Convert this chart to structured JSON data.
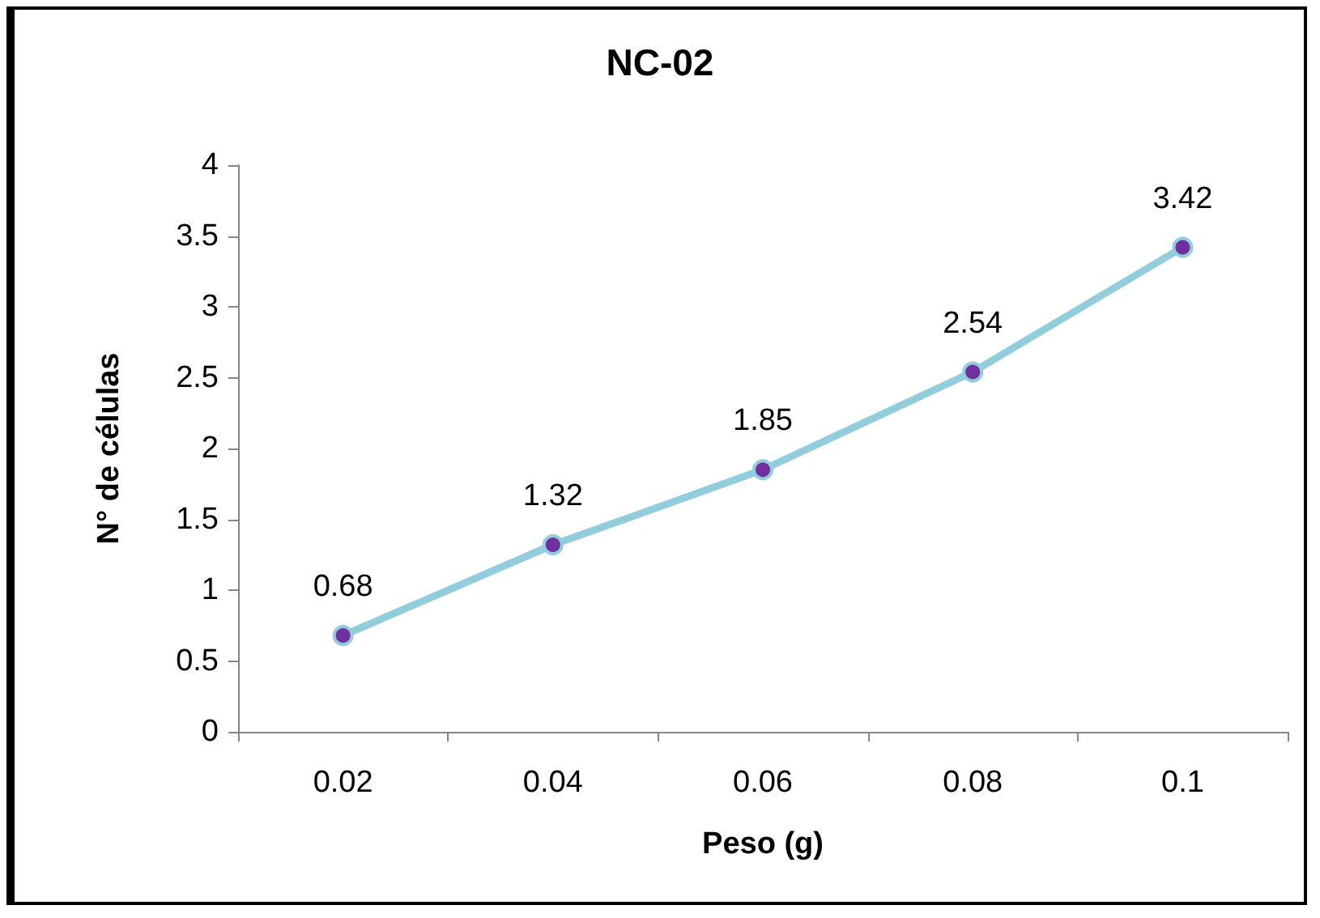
{
  "chart_data": {
    "type": "line",
    "title": "NC-02",
    "xlabel": "Peso (g)",
    "ylabel": "N° de células",
    "categories": [
      "0.02",
      "0.04",
      "0.06",
      "0.08",
      "0.1"
    ],
    "series": [
      {
        "color": "#92cddc",
        "values": [
          0.68,
          1.32,
          1.85,
          2.54,
          3.42
        ]
      }
    ],
    "ylim": [
      0,
      4
    ],
    "yticks": [
      0,
      0.5,
      1,
      1.5,
      2,
      2.5,
      3,
      3.5,
      4
    ],
    "grid": false,
    "marker": "circle",
    "line_style": "solid",
    "data_labels": true
  }
}
